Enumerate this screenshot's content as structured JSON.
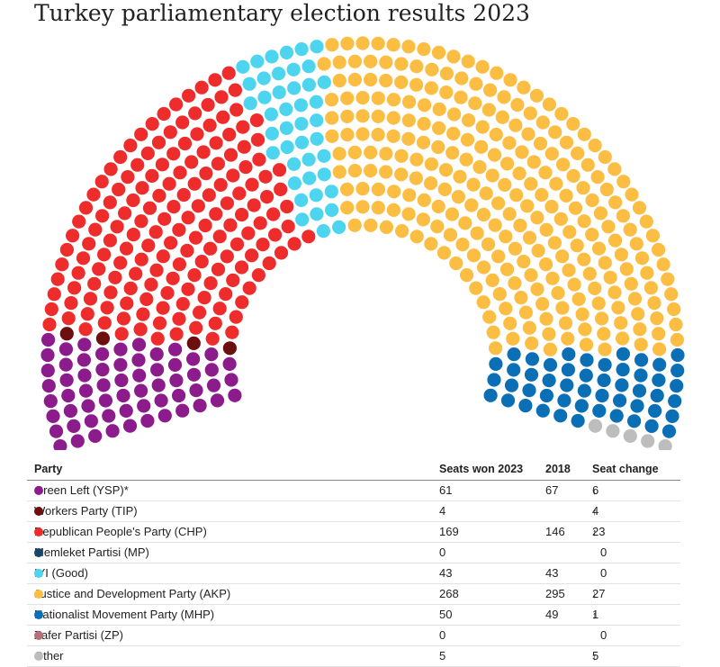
{
  "title": "Turkey parliamentary election results 2023",
  "table": {
    "headers": {
      "party": "Party",
      "seats_2023": "Seats won 2023",
      "seats_2018": "2018",
      "change": "Seat change"
    },
    "rows": [
      {
        "party": "Green Left (YSP)*",
        "color": "#8c1c8c",
        "seats_2023": "61",
        "seats_2018": "67",
        "change_dir": "down",
        "change": "6"
      },
      {
        "party": "Workers Party (TIP)",
        "color": "#6b0f0f",
        "seats_2023": "4",
        "seats_2018": "",
        "change_dir": "up",
        "change": "4"
      },
      {
        "party": "Republican People's Party (CHP)",
        "color": "#ee2c2c",
        "seats_2023": "169",
        "seats_2018": "146",
        "change_dir": "up",
        "change": "23"
      },
      {
        "party": "Memleket Partisi (MP)",
        "color": "#17466b",
        "seats_2023": "0",
        "seats_2018": "",
        "change_dir": "none",
        "change": "0"
      },
      {
        "party": "IYI (Good)",
        "color": "#4dd5ef",
        "seats_2023": "43",
        "seats_2018": "43",
        "change_dir": "none",
        "change": "0"
      },
      {
        "party": "Justice and Development Party (AKP)",
        "color": "#fbbd42",
        "seats_2023": "268",
        "seats_2018": "295",
        "change_dir": "down",
        "change": "27"
      },
      {
        "party": "Nationalist Movement Party (MHP)",
        "color": "#0b6fb5",
        "seats_2023": "50",
        "seats_2018": "49",
        "change_dir": "up",
        "change": "1"
      },
      {
        "party": "Zafer Partisi (ZP)",
        "color": "#b5707a",
        "seats_2023": "0",
        "seats_2018": "",
        "change_dir": "none",
        "change": "0"
      },
      {
        "party": "Other",
        "color": "#bdbdbd",
        "seats_2023": "5",
        "seats_2018": "",
        "change_dir": "up",
        "change": "5"
      }
    ]
  },
  "chart_data": {
    "type": "parliament",
    "total_seats": 600,
    "series": [
      {
        "name": "Green Left (YSP)*",
        "value": 61,
        "color": "#8c1c8c"
      },
      {
        "name": "Workers Party (TIP)",
        "value": 4,
        "color": "#6b0f0f"
      },
      {
        "name": "Republican People's Party (CHP)",
        "value": 169,
        "color": "#ee2c2c"
      },
      {
        "name": "IYI (Good)",
        "value": 43,
        "color": "#4dd5ef"
      },
      {
        "name": "Justice and Development Party (AKP)",
        "value": 268,
        "color": "#fbbd42"
      },
      {
        "name": "Nationalist Movement Party (MHP)",
        "value": 50,
        "color": "#0b6fb5"
      },
      {
        "name": "Other",
        "value": 5,
        "color": "#bdbdbd"
      }
    ]
  }
}
